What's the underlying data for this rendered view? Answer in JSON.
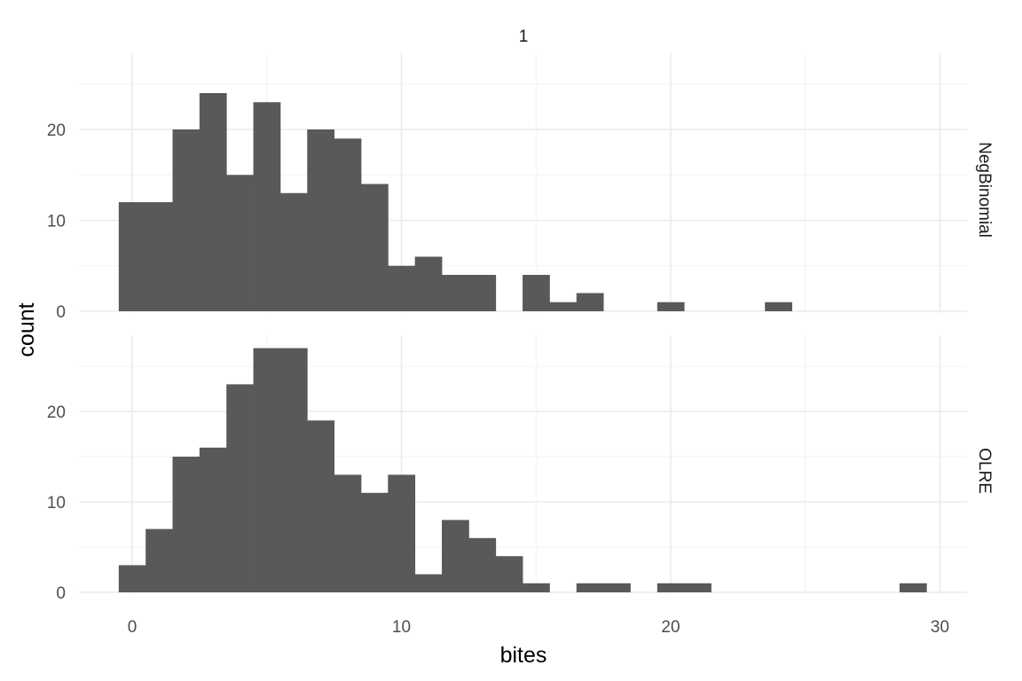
{
  "chart_data": {
    "type": "bar",
    "subtype": "histogram",
    "column_facet_label": "1",
    "xlabel": "bites",
    "ylabel": "count",
    "xlim": [
      -2,
      31
    ],
    "x_ticks": [
      0,
      10,
      20,
      30
    ],
    "bin_width": 1,
    "bin_centers": [
      0,
      1,
      2,
      3,
      4,
      5,
      6,
      7,
      8,
      9,
      10,
      11,
      12,
      13,
      14,
      15,
      16,
      17,
      18,
      19,
      20,
      21,
      22,
      23,
      24,
      25,
      26,
      27,
      28,
      29
    ],
    "panels": [
      {
        "label": "NegBinomial",
        "ylim": [
          0,
          26
        ],
        "y_ticks": [
          0,
          10,
          20
        ],
        "values": [
          12,
          12,
          20,
          24,
          15,
          23,
          13,
          20,
          19,
          14,
          5,
          6,
          4,
          4,
          0,
          4,
          1,
          2,
          0,
          0,
          1,
          0,
          0,
          0,
          1,
          0,
          0,
          0,
          0,
          0
        ]
      },
      {
        "label": "OLRE",
        "ylim": [
          0,
          29
        ],
        "y_ticks": [
          0,
          10,
          20
        ],
        "values": [
          3,
          7,
          15,
          16,
          23,
          27,
          27,
          19,
          13,
          11,
          13,
          2,
          8,
          6,
          4,
          1,
          0,
          1,
          1,
          0,
          1,
          1,
          0,
          0,
          0,
          0,
          0,
          0,
          0,
          1
        ]
      }
    ],
    "bar_color": "#595959",
    "grid": true,
    "background": "#ffffff"
  }
}
